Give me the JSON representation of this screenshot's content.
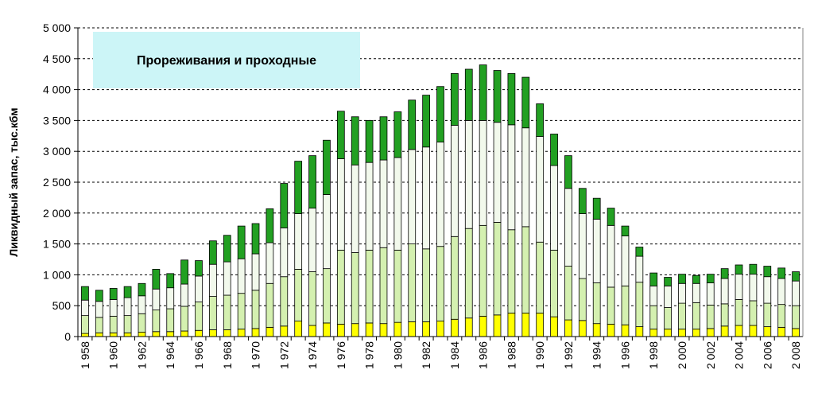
{
  "chart_data": {
    "type": "bar",
    "stacked": true,
    "title": "Прореживания и проходные",
    "ylabel": "Ликвидный запас, тыс.кбм",
    "xlabel": "",
    "ylim": [
      0,
      5000
    ],
    "yticks": [
      "0",
      "500",
      "1 000",
      "1 500",
      "2 000",
      "2 500",
      "3 000",
      "3 500",
      "4 000",
      "4 500",
      "5 000"
    ],
    "ytick_values": [
      0,
      500,
      1000,
      1500,
      2000,
      2500,
      3000,
      3500,
      4000,
      4500,
      5000
    ],
    "grid": true,
    "categories": [
      "1958",
      "1959",
      "1960",
      "1961",
      "1962",
      "1963",
      "1964",
      "1965",
      "1966",
      "1967",
      "1968",
      "1969",
      "1970",
      "1971",
      "1972",
      "1973",
      "1974",
      "1975",
      "1976",
      "1977",
      "1978",
      "1979",
      "1980",
      "1981",
      "1982",
      "1983",
      "1984",
      "1985",
      "1986",
      "1987",
      "1988",
      "1989",
      "1990",
      "1991",
      "1992",
      "1993",
      "1994",
      "1995",
      "1996",
      "1997",
      "1998",
      "1999",
      "2000",
      "2001",
      "2002",
      "2003",
      "2004",
      "2005",
      "2006",
      "2007",
      "2008"
    ],
    "xtick_labels": [
      "1 958",
      "",
      "1 960",
      "",
      "1 962",
      "",
      "1 964",
      "",
      "1 966",
      "",
      "1 968",
      "",
      "1 970",
      "",
      "1 972",
      "",
      "1 974",
      "",
      "1 976",
      "",
      "1 978",
      "",
      "1 980",
      "",
      "1 982",
      "",
      "1 984",
      "",
      "1 986",
      "",
      "1 988",
      "",
      "1 990",
      "",
      "1 992",
      "",
      "1 994",
      "",
      "1 996",
      "",
      "1 998",
      "",
      "2 000",
      "",
      "2 002",
      "",
      "2 004",
      "",
      "2 006",
      "",
      "2 008"
    ],
    "series": [
      {
        "color": "#ffff00",
        "values": [
          50,
          60,
          60,
          60,
          70,
          80,
          80,
          90,
          100,
          110,
          110,
          120,
          130,
          150,
          170,
          250,
          180,
          220,
          200,
          210,
          220,
          210,
          230,
          240,
          240,
          250,
          280,
          300,
          330,
          350,
          380,
          380,
          380,
          320,
          270,
          260,
          210,
          200,
          190,
          160,
          120,
          120,
          120,
          120,
          130,
          170,
          180,
          180,
          160,
          150,
          130
        ]
      },
      {
        "color": "#d4f0b0",
        "values": [
          290,
          250,
          270,
          280,
          300,
          350,
          370,
          400,
          460,
          540,
          560,
          580,
          620,
          710,
          800,
          840,
          870,
          880,
          1200,
          1150,
          1180,
          1230,
          1170,
          1260,
          1180,
          1210,
          1340,
          1450,
          1470,
          1500,
          1350,
          1400,
          1150,
          1080,
          870,
          680,
          660,
          600,
          630,
          720,
          380,
          350,
          420,
          430,
          380,
          360,
          420,
          400,
          380,
          370,
          370
        ]
      },
      {
        "color": "#f2f9ec",
        "values": [
          250,
          260,
          270,
          290,
          290,
          340,
          340,
          360,
          420,
          520,
          540,
          560,
          590,
          660,
          790,
          900,
          1030,
          1200,
          1480,
          1420,
          1420,
          1420,
          1500,
          1530,
          1650,
          1690,
          1800,
          1750,
          1700,
          1620,
          1700,
          1600,
          1710,
          1370,
          1260,
          1050,
          1030,
          1000,
          810,
          420,
          320,
          350,
          320,
          310,
          360,
          410,
          410,
          430,
          430,
          420,
          400
        ]
      },
      {
        "color": "#22a022",
        "values": [
          220,
          180,
          180,
          180,
          200,
          320,
          230,
          390,
          250,
          380,
          430,
          530,
          490,
          550,
          720,
          850,
          850,
          880,
          770,
          780,
          680,
          700,
          740,
          800,
          840,
          900,
          840,
          830,
          900,
          840,
          830,
          820,
          530,
          510,
          530,
          410,
          340,
          280,
          160,
          150,
          210,
          140,
          150,
          130,
          140,
          160,
          150,
          160,
          170,
          170,
          150
        ]
      }
    ]
  }
}
